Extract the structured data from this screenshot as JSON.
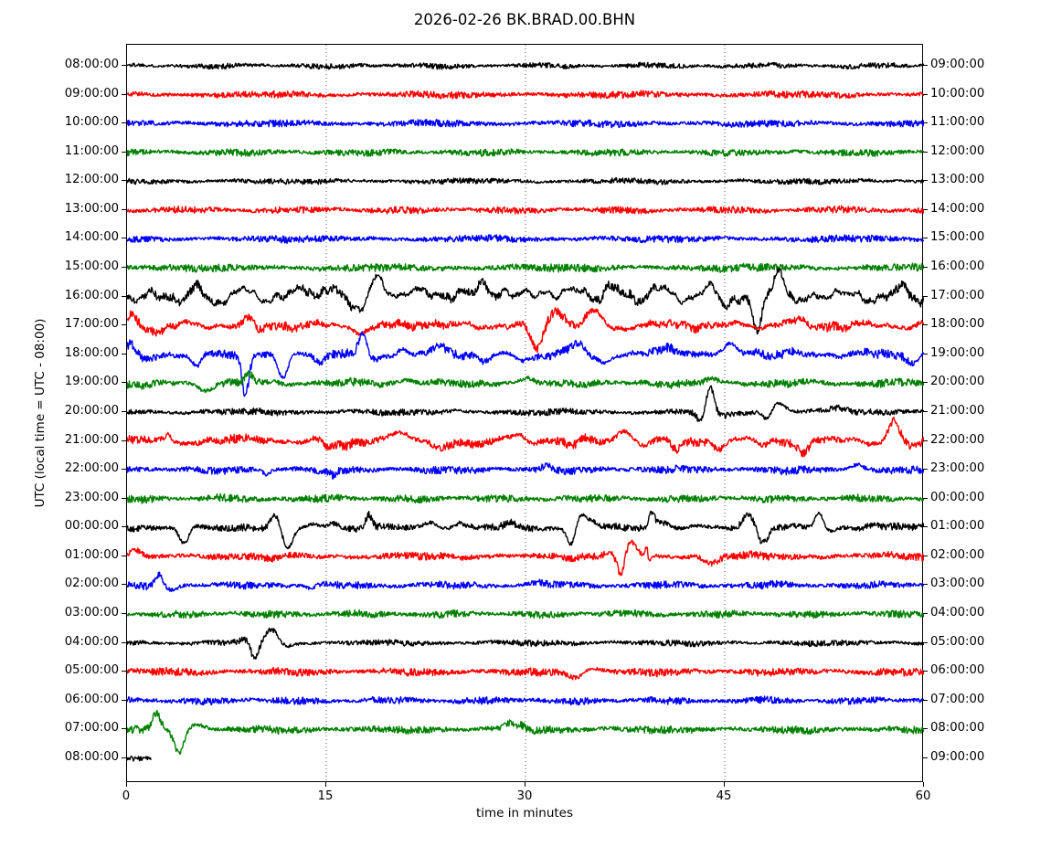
{
  "chart_data": {
    "type": "line",
    "subtype": "seismogram-dayplot",
    "title": "2026-02-26 BK.BRAD.00.BHN",
    "xlabel": "time in minutes",
    "ylabel": "UTC (local time = UTC - 08:00)",
    "xlim": [
      0,
      60
    ],
    "xticks": [
      0,
      15,
      30,
      45,
      60
    ],
    "grid_minutes": [
      15,
      30,
      45
    ],
    "grid_style": "dotted",
    "legend": "none",
    "trace_color_cycle": [
      "#000000",
      "#ff0000",
      "#0000ff",
      "#008000"
    ],
    "rows_note": "each row is one hour of data; left label = UTC start, right label = UTC end; n = noise half-amplitude px, w = slow-wander amplitude px, wf = wander frequency factor, dur = trace length in minutes, ev = events [minute, amplitude px (+up), sigma minutes]",
    "rows": [
      {
        "left_label": "08:00:00",
        "right_label": "09:00:00",
        "color": "#000000",
        "n": 2.2,
        "w": 1.2,
        "wf": 0.8,
        "dur": 60,
        "ev": []
      },
      {
        "left_label": "09:00:00",
        "right_label": "10:00:00",
        "color": "#ff0000",
        "n": 2.8,
        "w": 1.3,
        "wf": 0.8,
        "dur": 60,
        "ev": []
      },
      {
        "left_label": "10:00:00",
        "right_label": "11:00:00",
        "color": "#0000ff",
        "n": 2.8,
        "w": 1.3,
        "wf": 0.8,
        "dur": 60,
        "ev": []
      },
      {
        "left_label": "11:00:00",
        "right_label": "12:00:00",
        "color": "#008000",
        "n": 2.8,
        "w": 1.2,
        "wf": 0.8,
        "dur": 60,
        "ev": []
      },
      {
        "left_label": "12:00:00",
        "right_label": "13:00:00",
        "color": "#000000",
        "n": 2.2,
        "w": 1.2,
        "wf": 0.8,
        "dur": 60,
        "ev": []
      },
      {
        "left_label": "13:00:00",
        "right_label": "14:00:00",
        "color": "#ff0000",
        "n": 2.8,
        "w": 1.3,
        "wf": 0.8,
        "dur": 60,
        "ev": []
      },
      {
        "left_label": "14:00:00",
        "right_label": "15:00:00",
        "color": "#0000ff",
        "n": 2.8,
        "w": 1.3,
        "wf": 0.8,
        "dur": 60,
        "ev": []
      },
      {
        "left_label": "15:00:00",
        "right_label": "16:00:00",
        "color": "#008000",
        "n": 3.2,
        "w": 1.4,
        "wf": 0.8,
        "dur": 60,
        "ev": []
      },
      {
        "left_label": "16:00:00",
        "right_label": "17:00:00",
        "color": "#000000",
        "n": 3.4,
        "w": 8,
        "wf": 2.2,
        "dur": 60,
        "ev": [
          [
            5.4,
            9,
            0.4
          ],
          [
            6.3,
            -7,
            0.4
          ],
          [
            8.7,
            7,
            0.4
          ],
          [
            13.4,
            11,
            0.45
          ],
          [
            15,
            9,
            0.4
          ],
          [
            17.4,
            -13,
            0.5
          ],
          [
            18.7,
            21,
            0.45
          ],
          [
            21.5,
            11,
            0.5
          ],
          [
            25,
            7,
            0.5
          ],
          [
            26.8,
            11,
            0.5
          ],
          [
            28.4,
            9,
            0.4
          ],
          [
            31.5,
            7,
            0.6
          ],
          [
            34,
            7,
            0.5
          ],
          [
            36.5,
            9,
            0.5
          ],
          [
            40,
            9,
            0.5
          ],
          [
            43.8,
            8,
            0.5
          ],
          [
            45,
            -7,
            0.4
          ],
          [
            47.4,
            -43,
            0.3
          ],
          [
            49.1,
            33,
            0.4
          ],
          [
            50.5,
            -9,
            0.4
          ],
          [
            53,
            5,
            0.6
          ],
          [
            58.6,
            9,
            0.5
          ],
          [
            59.6,
            -6,
            0.3
          ]
        ]
      },
      {
        "left_label": "17:00:00",
        "right_label": "18:00:00",
        "color": "#ff0000",
        "n": 3.5,
        "w": 4.5,
        "wf": 1.5,
        "dur": 60,
        "ev": [
          [
            0.4,
            11,
            0.4
          ],
          [
            2.3,
            -7,
            0.5
          ],
          [
            9,
            6,
            0.35
          ],
          [
            10,
            -5,
            0.4
          ],
          [
            17.8,
            -6,
            0.7
          ],
          [
            22.5,
            4,
            0.5
          ],
          [
            30.8,
            -27,
            0.4
          ],
          [
            32.4,
            16,
            0.6
          ],
          [
            35.2,
            15,
            0.5
          ],
          [
            36.8,
            -4,
            0.4
          ],
          [
            50,
            4,
            0.8
          ]
        ]
      },
      {
        "left_label": "18:00:00",
        "right_label": "19:00:00",
        "color": "#0000ff",
        "n": 3.5,
        "w": 3.5,
        "wf": 1.4,
        "dur": 60,
        "ev": [
          [
            0.2,
            10,
            0.35
          ],
          [
            1.4,
            -7,
            0.5
          ],
          [
            5.3,
            -13,
            0.35
          ],
          [
            8.9,
            -43,
            0.25
          ],
          [
            11.7,
            -26,
            0.4
          ],
          [
            14.5,
            -5,
            0.4
          ],
          [
            17.7,
            19,
            0.3
          ],
          [
            18.6,
            -5,
            0.4
          ],
          [
            20.8,
            5,
            0.4
          ],
          [
            23.7,
            8,
            0.5
          ],
          [
            27.1,
            -7,
            0.5
          ],
          [
            29.9,
            -7,
            0.5
          ],
          [
            34,
            12,
            0.5
          ],
          [
            35.6,
            -8,
            0.6
          ],
          [
            41,
            7,
            0.8
          ],
          [
            45.5,
            11,
            0.4
          ],
          [
            47,
            4,
            0.5
          ],
          [
            59.2,
            -7,
            0.4
          ]
        ]
      },
      {
        "left_label": "19:00:00",
        "right_label": "20:00:00",
        "color": "#008000",
        "n": 3.2,
        "w": 2,
        "wf": 1.1,
        "dur": 60,
        "ev": [
          [
            1.2,
            -5,
            0.4
          ],
          [
            5.9,
            -7,
            0.5
          ],
          [
            9.2,
            10,
            0.3
          ],
          [
            21,
            4,
            0.5
          ],
          [
            30.2,
            4,
            0.5
          ],
          [
            44,
            4,
            0.5
          ]
        ]
      },
      {
        "left_label": "20:00:00",
        "right_label": "21:00:00",
        "color": "#000000",
        "n": 2.6,
        "w": 1.4,
        "wf": 0.9,
        "dur": 60,
        "ev": [
          [
            43.2,
            -11,
            0.3
          ],
          [
            43.9,
            27,
            0.3
          ],
          [
            44.8,
            -4,
            0.5
          ],
          [
            48.2,
            -10,
            0.3
          ],
          [
            49,
            10,
            0.5
          ],
          [
            53.5,
            5,
            0.8
          ]
        ]
      },
      {
        "left_label": "21:00:00",
        "right_label": "22:00:00",
        "color": "#ff0000",
        "n": 3.5,
        "w": 4.5,
        "wf": 1.2,
        "dur": 60,
        "ev": [
          [
            3.1,
            7,
            0.12
          ],
          [
            10,
            3,
            0.8
          ],
          [
            15.2,
            -10,
            0.4
          ],
          [
            16.5,
            -4,
            0.4
          ],
          [
            19.5,
            5,
            0.7
          ],
          [
            20.9,
            6,
            0.4
          ],
          [
            23.4,
            -8,
            0.4
          ],
          [
            26.4,
            -7,
            0.45
          ],
          [
            29.5,
            7,
            0.6
          ],
          [
            33.5,
            -5,
            0.5
          ],
          [
            37.3,
            11,
            0.6
          ],
          [
            39,
            -5,
            0.4
          ],
          [
            41.3,
            -9,
            0.4
          ],
          [
            44.5,
            -6,
            0.5
          ],
          [
            48,
            -4,
            0.4
          ],
          [
            51,
            -10,
            0.45
          ],
          [
            57.7,
            21,
            0.4
          ],
          [
            59.3,
            -7,
            0.5
          ]
        ]
      },
      {
        "left_label": "22:00:00",
        "right_label": "23:00:00",
        "color": "#0000ff",
        "n": 3.1,
        "w": 1.6,
        "wf": 0.9,
        "dur": 60,
        "ev": [
          [
            10.5,
            -5,
            0.3
          ],
          [
            15.5,
            -5,
            0.25
          ],
          [
            31.5,
            4,
            0.4
          ],
          [
            41.5,
            4,
            0.4
          ],
          [
            55,
            4,
            0.4
          ]
        ]
      },
      {
        "left_label": "23:00:00",
        "right_label": "00:00:00",
        "color": "#008000",
        "n": 3.1,
        "w": 1.3,
        "wf": 0.8,
        "dur": 60,
        "ev": []
      },
      {
        "left_label": "00:00:00",
        "right_label": "01:00:00",
        "color": "#000000",
        "n": 2.9,
        "w": 2.2,
        "wf": 1.0,
        "dur": 60,
        "ev": [
          [
            4.3,
            -18,
            0.35
          ],
          [
            11.2,
            14,
            0.35
          ],
          [
            12.1,
            -25,
            0.4
          ],
          [
            14,
            4,
            0.4
          ],
          [
            15.5,
            5,
            0.4
          ],
          [
            18.2,
            14,
            0.22
          ],
          [
            22.9,
            6,
            0.4
          ],
          [
            25,
            6,
            0.35
          ],
          [
            28.8,
            5,
            0.35
          ],
          [
            33.4,
            -19,
            0.3
          ],
          [
            34.2,
            14,
            0.3
          ],
          [
            34.9,
            7,
            0.35
          ],
          [
            39.5,
            14,
            0.22
          ],
          [
            40.2,
            6,
            0.5
          ],
          [
            46.8,
            15,
            0.4
          ],
          [
            47.9,
            -16,
            0.35
          ],
          [
            52.1,
            16,
            0.3
          ],
          [
            52.9,
            -4,
            0.4
          ],
          [
            56,
            3,
            0.5
          ]
        ]
      },
      {
        "left_label": "01:00:00",
        "right_label": "02:00:00",
        "color": "#ff0000",
        "n": 3.1,
        "w": 1.8,
        "wf": 0.9,
        "dur": 60,
        "ev": [
          [
            0.6,
            7,
            0.4
          ],
          [
            11,
            -3,
            0.4
          ],
          [
            36.2,
            3,
            0.4
          ],
          [
            37.2,
            -23,
            0.25
          ],
          [
            37.9,
            15,
            0.4
          ],
          [
            39.15,
            12,
            0.1
          ],
          [
            39.3,
            -10,
            0.1
          ],
          [
            44,
            -7,
            0.5
          ],
          [
            57,
            3,
            0.5
          ]
        ]
      },
      {
        "left_label": "02:00:00",
        "right_label": "03:00:00",
        "color": "#0000ff",
        "n": 2.9,
        "w": 1.5,
        "wf": 0.9,
        "dur": 60,
        "ev": [
          [
            2.4,
            12,
            0.3
          ],
          [
            3.3,
            -5,
            0.4
          ],
          [
            13.8,
            -4,
            0.3
          ],
          [
            31,
            3,
            0.4
          ]
        ]
      },
      {
        "left_label": "03:00:00",
        "right_label": "04:00:00",
        "color": "#008000",
        "n": 2.9,
        "w": 1.2,
        "wf": 0.8,
        "dur": 60,
        "ev": []
      },
      {
        "left_label": "04:00:00",
        "right_label": "05:00:00",
        "color": "#000000",
        "n": 2.4,
        "w": 1.2,
        "wf": 0.8,
        "dur": 60,
        "ev": [
          [
            9,
            4,
            0.4
          ],
          [
            9.6,
            -20,
            0.28
          ],
          [
            10.9,
            14,
            0.45
          ],
          [
            12,
            -3,
            0.4
          ]
        ]
      },
      {
        "left_label": "05:00:00",
        "right_label": "06:00:00",
        "color": "#ff0000",
        "n": 3.1,
        "w": 1.4,
        "wf": 0.9,
        "dur": 60,
        "ev": [
          [
            33.8,
            -7,
            0.5
          ],
          [
            35.2,
            3,
            0.5
          ]
        ]
      },
      {
        "left_label": "06:00:00",
        "right_label": "07:00:00",
        "color": "#0000ff",
        "n": 2.9,
        "w": 1.3,
        "wf": 0.8,
        "dur": 60,
        "ev": []
      },
      {
        "left_label": "07:00:00",
        "right_label": "08:00:00",
        "color": "#008000",
        "n": 3.1,
        "w": 1.4,
        "wf": 0.8,
        "dur": 60,
        "ev": [
          [
            2.2,
            19,
            0.3
          ],
          [
            3.9,
            -25,
            0.35
          ],
          [
            5.2,
            5,
            0.5
          ],
          [
            28.8,
            7,
            0.35
          ],
          [
            29.7,
            5,
            0.3
          ]
        ]
      },
      {
        "left_label": "08:00:00",
        "right_label": "09:00:00",
        "color": "#000000",
        "n": 2.2,
        "w": 0.6,
        "wf": 0.8,
        "dur": 1.8,
        "ev": []
      }
    ]
  }
}
